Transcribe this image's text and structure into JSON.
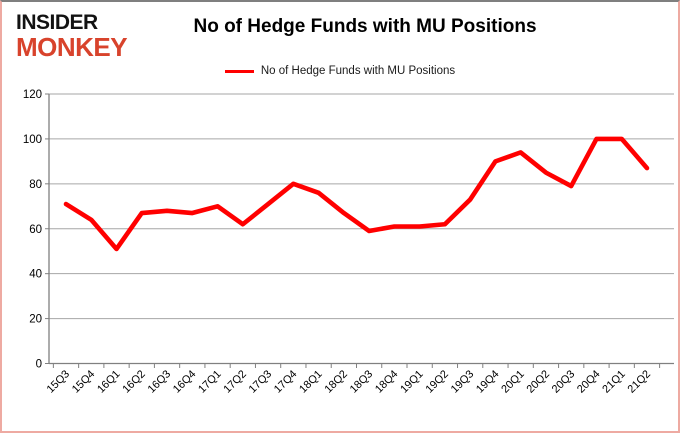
{
  "logo": {
    "line1": "INSIDER",
    "line2": "MONKEY",
    "monkey_color": "#d8432c"
  },
  "header": {
    "title": "No of Hedge Funds with MU Positions"
  },
  "legend": {
    "label": "No of Hedge Funds with MU Positions"
  },
  "chart_data": {
    "type": "line",
    "title": "No of Hedge Funds with MU Positions",
    "categories": [
      "15Q3",
      "15Q4",
      "16Q1",
      "16Q2",
      "16Q3",
      "16Q4",
      "17Q1",
      "17Q2",
      "17Q3",
      "17Q4",
      "18Q1",
      "18Q2",
      "18Q3",
      "18Q4",
      "19Q1",
      "19Q2",
      "19Q3",
      "19Q4",
      "20Q1",
      "20Q2",
      "20Q3",
      "20Q4",
      "21Q1",
      "21Q2"
    ],
    "series": [
      {
        "name": "No of Hedge Funds with MU Positions",
        "color": "#ff0000",
        "values": [
          71,
          64,
          51,
          67,
          68,
          67,
          70,
          62,
          71,
          80,
          76,
          67,
          59,
          61,
          61,
          62,
          73,
          90,
          94,
          85,
          79,
          100,
          100,
          87
        ]
      }
    ],
    "xlabel": "",
    "ylabel": "",
    "ylim": [
      0,
      120
    ],
    "ytick_interval": 20,
    "grid": true,
    "legend_position": "top-center"
  },
  "colors": {
    "line": "#ff0000",
    "grid": "#a6a6a6",
    "axis": "#808080",
    "tick_text": "#000000",
    "frame_top": "#7f7f7f",
    "frame_side": "#eeaaa2"
  }
}
